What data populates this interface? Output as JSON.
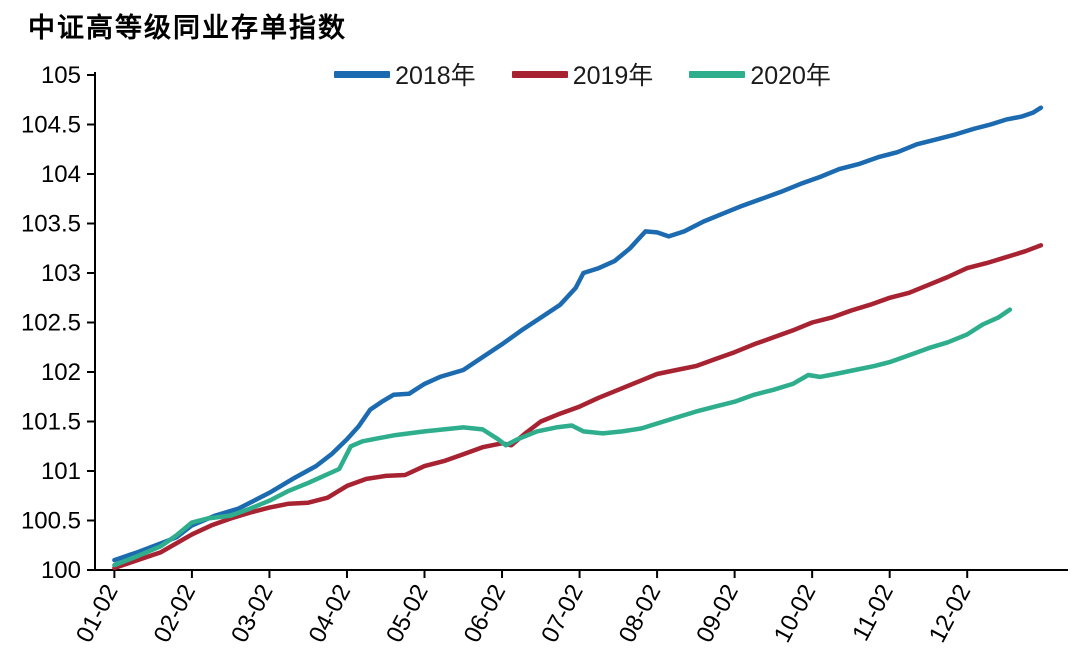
{
  "chart_data": {
    "type": "line",
    "title": "中证高等级同业存单指数",
    "ylabel": "",
    "xlabel": "",
    "ylim": [
      100,
      105
    ],
    "xlim": [
      -0.25,
      12.3
    ],
    "grid": false,
    "legend_position": "top",
    "axis_color": "#000000",
    "yticks": [
      100,
      100.5,
      101,
      101.5,
      102,
      102.5,
      103,
      103.5,
      104,
      104.5,
      105
    ],
    "y_tick_labels": [
      "100",
      "100.5",
      "101",
      "101.5",
      "102",
      "102.5",
      "103",
      "103.5",
      "104",
      "104.5",
      "105"
    ],
    "x_tick_labels": [
      "01-02",
      "02-02",
      "03-02",
      "04-02",
      "05-02",
      "06-02",
      "07-02",
      "08-02",
      "09-02",
      "10-02",
      "11-02",
      "12-02"
    ],
    "series": [
      {
        "name": "2018年",
        "color": "#1c6bb0",
        "points": [
          [
            0,
            100.1
          ],
          [
            0.3,
            100.18
          ],
          [
            0.6,
            100.27
          ],
          [
            0.8,
            100.33
          ],
          [
            1,
            100.45
          ],
          [
            1.3,
            100.55
          ],
          [
            1.6,
            100.62
          ],
          [
            1.8,
            100.7
          ],
          [
            2,
            100.78
          ],
          [
            2.3,
            100.92
          ],
          [
            2.6,
            101.05
          ],
          [
            2.8,
            101.17
          ],
          [
            3,
            101.32
          ],
          [
            3.15,
            101.45
          ],
          [
            3.3,
            101.62
          ],
          [
            3.45,
            101.7
          ],
          [
            3.6,
            101.77
          ],
          [
            3.8,
            101.78
          ],
          [
            4,
            101.88
          ],
          [
            4.2,
            101.95
          ],
          [
            4.5,
            102.02
          ],
          [
            4.75,
            102.15
          ],
          [
            5,
            102.28
          ],
          [
            5.25,
            102.42
          ],
          [
            5.5,
            102.55
          ],
          [
            5.75,
            102.68
          ],
          [
            5.95,
            102.85
          ],
          [
            6.05,
            103.0
          ],
          [
            6.25,
            103.05
          ],
          [
            6.45,
            103.12
          ],
          [
            6.65,
            103.25
          ],
          [
            6.85,
            103.42
          ],
          [
            7,
            103.41
          ],
          [
            7.15,
            103.37
          ],
          [
            7.35,
            103.42
          ],
          [
            7.6,
            103.52
          ],
          [
            7.85,
            103.6
          ],
          [
            8.1,
            103.68
          ],
          [
            8.35,
            103.75
          ],
          [
            8.6,
            103.82
          ],
          [
            8.85,
            103.9
          ],
          [
            9.1,
            103.97
          ],
          [
            9.35,
            104.05
          ],
          [
            9.6,
            104.1
          ],
          [
            9.85,
            104.17
          ],
          [
            10.1,
            104.22
          ],
          [
            10.35,
            104.3
          ],
          [
            10.6,
            104.35
          ],
          [
            10.85,
            104.4
          ],
          [
            11.1,
            104.46
          ],
          [
            11.3,
            104.5
          ],
          [
            11.5,
            104.55
          ],
          [
            11.7,
            104.58
          ],
          [
            11.85,
            104.62
          ],
          [
            11.95,
            104.67
          ]
        ]
      },
      {
        "name": "2019年",
        "color": "#a82332",
        "points": [
          [
            0,
            100.02
          ],
          [
            0.3,
            100.1
          ],
          [
            0.6,
            100.18
          ],
          [
            0.8,
            100.27
          ],
          [
            1,
            100.36
          ],
          [
            1.25,
            100.45
          ],
          [
            1.5,
            100.52
          ],
          [
            1.75,
            100.58
          ],
          [
            2,
            100.63
          ],
          [
            2.25,
            100.67
          ],
          [
            2.5,
            100.68
          ],
          [
            2.75,
            100.73
          ],
          [
            3,
            100.85
          ],
          [
            3.25,
            100.92
          ],
          [
            3.5,
            100.95
          ],
          [
            3.75,
            100.96
          ],
          [
            4,
            101.05
          ],
          [
            4.25,
            101.1
          ],
          [
            4.5,
            101.17
          ],
          [
            4.75,
            101.24
          ],
          [
            5,
            101.28
          ],
          [
            5.12,
            101.26
          ],
          [
            5.3,
            101.38
          ],
          [
            5.5,
            101.5
          ],
          [
            5.75,
            101.58
          ],
          [
            6,
            101.65
          ],
          [
            6.25,
            101.74
          ],
          [
            6.5,
            101.82
          ],
          [
            6.75,
            101.9
          ],
          [
            7,
            101.98
          ],
          [
            7.25,
            102.02
          ],
          [
            7.5,
            102.06
          ],
          [
            7.75,
            102.13
          ],
          [
            8,
            102.2
          ],
          [
            8.25,
            102.28
          ],
          [
            8.5,
            102.35
          ],
          [
            8.75,
            102.42
          ],
          [
            9,
            102.5
          ],
          [
            9.25,
            102.55
          ],
          [
            9.5,
            102.62
          ],
          [
            9.75,
            102.68
          ],
          [
            10,
            102.75
          ],
          [
            10.25,
            102.8
          ],
          [
            10.5,
            102.88
          ],
          [
            10.75,
            102.96
          ],
          [
            11,
            103.05
          ],
          [
            11.25,
            103.1
          ],
          [
            11.5,
            103.16
          ],
          [
            11.75,
            103.22
          ],
          [
            11.95,
            103.28
          ]
        ]
      },
      {
        "name": "2020年",
        "color": "#2fae8e",
        "points": [
          [
            0,
            100.05
          ],
          [
            0.3,
            100.14
          ],
          [
            0.6,
            100.24
          ],
          [
            0.8,
            100.35
          ],
          [
            1,
            100.48
          ],
          [
            1.2,
            100.52
          ],
          [
            1.5,
            100.55
          ],
          [
            1.75,
            100.62
          ],
          [
            2,
            100.7
          ],
          [
            2.25,
            100.8
          ],
          [
            2.5,
            100.88
          ],
          [
            2.7,
            100.95
          ],
          [
            2.9,
            101.02
          ],
          [
            3.05,
            101.25
          ],
          [
            3.2,
            101.3
          ],
          [
            3.4,
            101.33
          ],
          [
            3.6,
            101.36
          ],
          [
            3.8,
            101.38
          ],
          [
            4,
            101.4
          ],
          [
            4.25,
            101.42
          ],
          [
            4.5,
            101.44
          ],
          [
            4.75,
            101.42
          ],
          [
            4.95,
            101.32
          ],
          [
            5.05,
            101.26
          ],
          [
            5.2,
            101.32
          ],
          [
            5.45,
            101.4
          ],
          [
            5.7,
            101.44
          ],
          [
            5.9,
            101.46
          ],
          [
            6.05,
            101.4
          ],
          [
            6.3,
            101.38
          ],
          [
            6.55,
            101.4
          ],
          [
            6.8,
            101.43
          ],
          [
            7,
            101.48
          ],
          [
            7.25,
            101.54
          ],
          [
            7.5,
            101.6
          ],
          [
            7.75,
            101.65
          ],
          [
            8,
            101.7
          ],
          [
            8.25,
            101.77
          ],
          [
            8.5,
            101.82
          ],
          [
            8.75,
            101.88
          ],
          [
            8.95,
            101.97
          ],
          [
            9.1,
            101.95
          ],
          [
            9.3,
            101.98
          ],
          [
            9.55,
            102.02
          ],
          [
            9.8,
            102.06
          ],
          [
            10,
            102.1
          ],
          [
            10.25,
            102.17
          ],
          [
            10.5,
            102.24
          ],
          [
            10.75,
            102.3
          ],
          [
            11,
            102.38
          ],
          [
            11.2,
            102.48
          ],
          [
            11.4,
            102.55
          ],
          [
            11.55,
            102.63
          ]
        ]
      }
    ]
  }
}
